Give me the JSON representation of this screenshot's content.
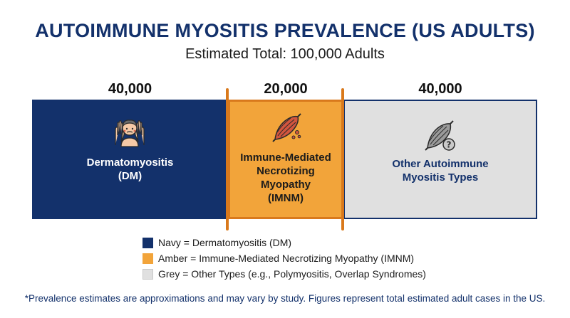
{
  "chart_data": {
    "type": "bar",
    "orientation": "stacked-horizontal",
    "title": "AUTOIMMUNE MYOSITIS PREVALENCE (US ADULTS)",
    "subtitle": "Estimated Total: 100,000 Adults",
    "total": 100000,
    "segments": [
      {
        "label_lines": [
          "Dermatomyositis",
          "(DM)"
        ],
        "value": 40000,
        "value_label": "40,000",
        "color": "#13316b",
        "text_color": "#ffffff",
        "icon": "dermatomyositis-patient-icon"
      },
      {
        "label_lines": [
          "Immune-Mediated",
          "Necrotizing",
          "Myopathy",
          "(IMNM)"
        ],
        "value": 20000,
        "value_label": "20,000",
        "color": "#f2a43a",
        "text_color": "#1b1b1b",
        "icon": "muscle-icon"
      },
      {
        "label_lines": [
          "Other Autoimmune",
          "Myositis Types"
        ],
        "value": 40000,
        "value_label": "40,000",
        "color": "#e0e0e0",
        "text_color": "#13316b",
        "icon": "muscle-question-icon"
      }
    ],
    "legend": [
      {
        "text": "Navy = Dermatomyositis (DM)",
        "color": "#13316b"
      },
      {
        "text": "Amber = Immune-Mediated Necrotizing Myopathy (IMNM)",
        "color": "#f2a43a"
      },
      {
        "text": "Grey = Other Types (e.g., Polymyositis, Overlap Syndromes)",
        "color": "#e0e0e0"
      }
    ],
    "footnote": "*Prevalence estimates are approximations and may vary by study. Figures represent total estimated adult cases in the US."
  }
}
